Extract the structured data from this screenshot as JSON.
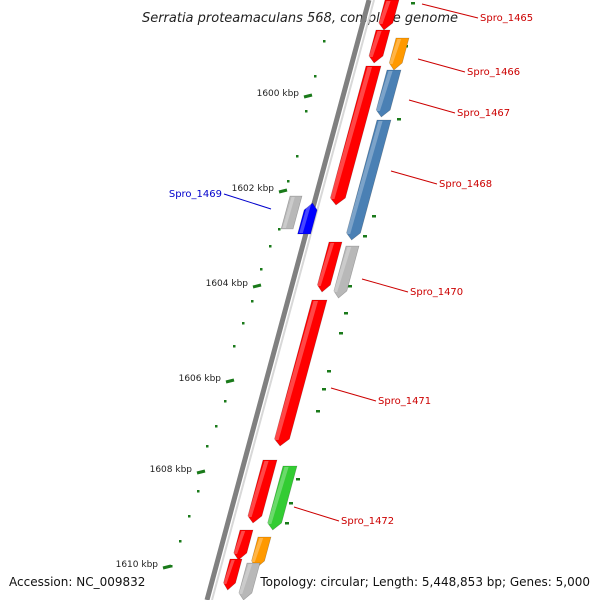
{
  "map": {
    "title": "Serratia proteamaculans 568, complete genome",
    "accession": "Accession: NC_009832",
    "summary": "Topology: circular; Length: 5,448,853 bp; Genes: 5,000"
  },
  "colors": {
    "backbone": "#7a7a7a",
    "tick": "#1a7a1a",
    "cds_red": "#ff0000",
    "cds_orange": "#ff9900",
    "cds_steelblue": "#4a80b4",
    "cds_gray": "#b8b8b8",
    "cds_blue": "#0000ff",
    "cds_green": "#33cc33",
    "label_red": "#cc0000",
    "label_blue": "#0000cc"
  },
  "ticks": [
    {
      "label": "1600 kbp"
    },
    {
      "label": "1602 kbp"
    },
    {
      "label": "1604 kbp"
    },
    {
      "label": "1606 kbp"
    },
    {
      "label": "1608 kbp"
    },
    {
      "label": "1610 kbp"
    }
  ],
  "gene_labels": [
    {
      "label": "Spro_1465",
      "color": "label_red"
    },
    {
      "label": "Spro_1466",
      "color": "label_red"
    },
    {
      "label": "Spro_1467",
      "color": "label_red"
    },
    {
      "label": "Spro_1468",
      "color": "label_red"
    },
    {
      "label": "Spro_1469",
      "color": "label_blue"
    },
    {
      "label": "Spro_1470",
      "color": "label_red"
    },
    {
      "label": "Spro_1471",
      "color": "label_red"
    },
    {
      "label": "Spro_1472",
      "color": "label_red"
    }
  ],
  "features": [
    {
      "color": "cds_red"
    },
    {
      "color": "cds_orange"
    },
    {
      "color": "cds_red"
    },
    {
      "color": "cds_steelblue"
    },
    {
      "color": "cds_red"
    },
    {
      "color": "cds_steelblue"
    },
    {
      "color": "cds_gray"
    },
    {
      "color": "cds_blue"
    },
    {
      "color": "cds_red"
    },
    {
      "color": "cds_gray"
    },
    {
      "color": "cds_red"
    },
    {
      "color": "cds_red"
    },
    {
      "color": "cds_green"
    },
    {
      "color": "cds_red"
    },
    {
      "color": "cds_orange"
    },
    {
      "color": "cds_red"
    },
    {
      "color": "cds_gray"
    }
  ]
}
